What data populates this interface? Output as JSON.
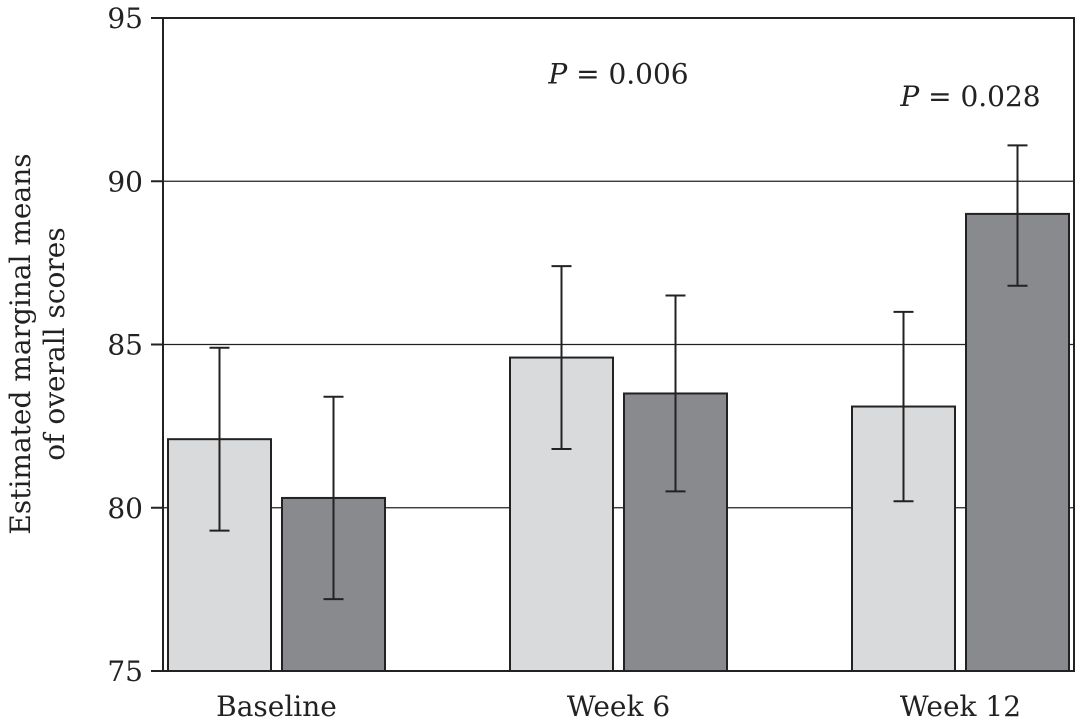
{
  "chart_data": {
    "type": "bar",
    "categories": [
      "Baseline",
      "Week 6",
      "Week 12"
    ],
    "series": [
      {
        "color": "#d9dadc",
        "values": [
          82.1,
          84.6,
          83.1
        ],
        "error_low": [
          79.3,
          81.8,
          80.2
        ],
        "error_high": [
          84.9,
          87.4,
          86.0
        ]
      },
      {
        "color": "#898a8e",
        "values": [
          80.3,
          83.5,
          89.0
        ],
        "error_low": [
          77.2,
          80.5,
          86.8
        ],
        "error_high": [
          83.4,
          86.5,
          91.1
        ]
      }
    ],
    "ylabel_lines": [
      "Estimated marginal means",
      "of overall scores"
    ],
    "ylim": [
      75,
      95
    ],
    "yticks": [
      "75",
      "80",
      "85",
      "90",
      "95"
    ],
    "gridlines": [
      80,
      85,
      90
    ],
    "annotations": [
      {
        "category": "Week 6",
        "text_italic": "P",
        "text_rest": " = 0.006",
        "y": 93
      },
      {
        "category": "Week 12",
        "text_italic": "P",
        "text_rest": " = 0.028",
        "y": 92.3
      }
    ]
  }
}
